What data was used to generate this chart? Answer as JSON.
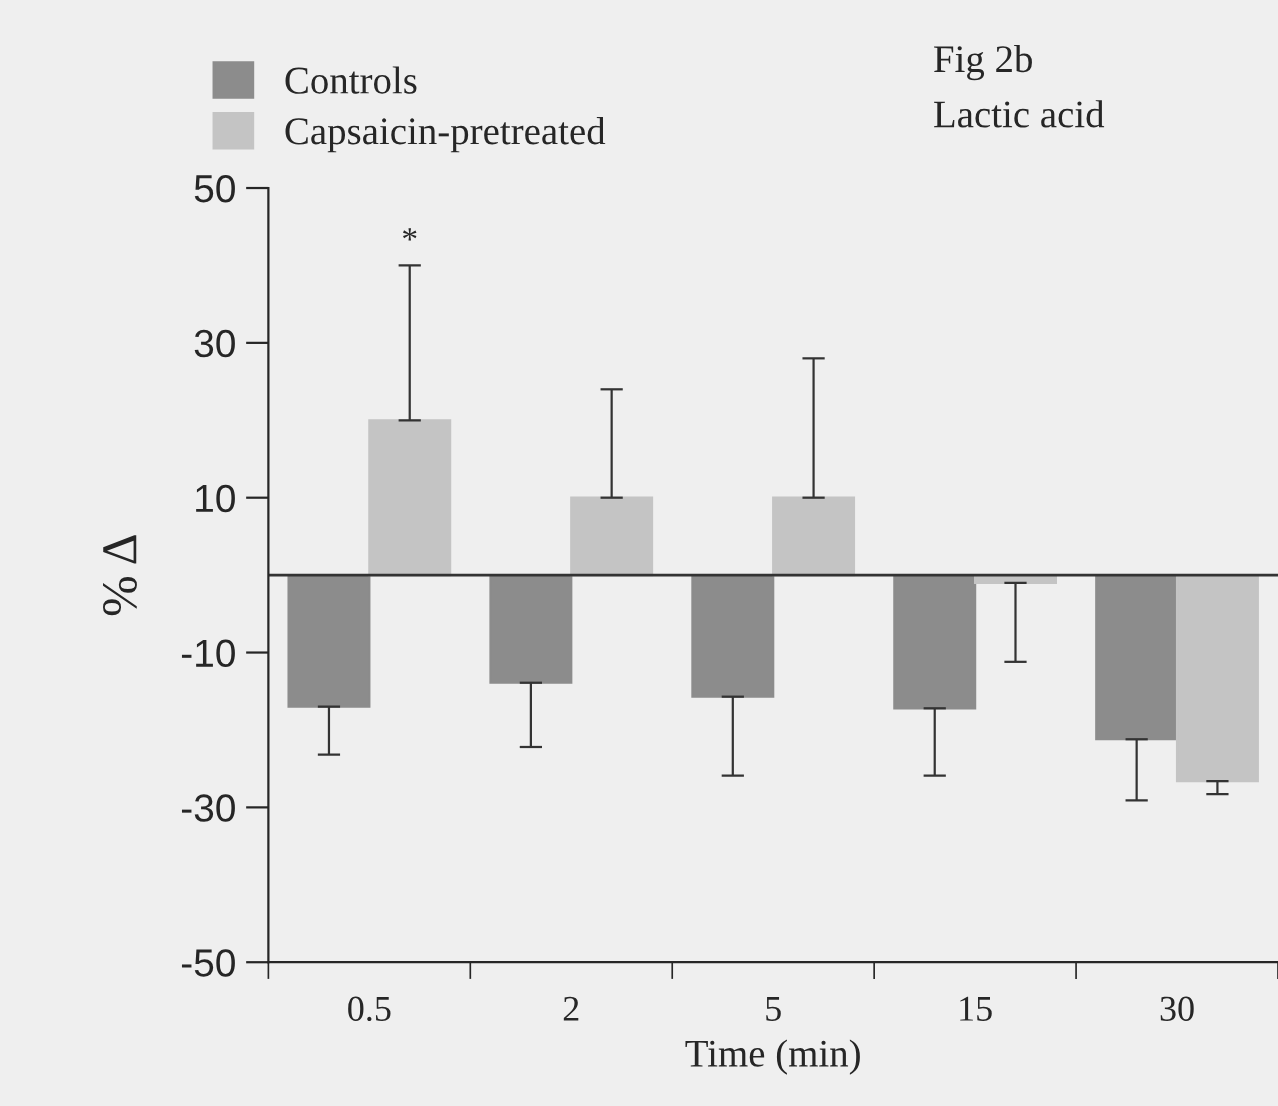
{
  "chart_data": {
    "type": "bar",
    "title": "Fig 2b",
    "subtitle": "Lactic acid",
    "xlabel": "Time (min)",
    "ylabel": "% Δ",
    "categories": [
      "0.5",
      "2",
      "5",
      "15",
      "30"
    ],
    "series": [
      {
        "name": "Controls",
        "color": "#8c8c8c",
        "values": [
          -17.0,
          -13.9,
          -15.7,
          -17.2,
          -21.2
        ],
        "errors": [
          [
            -23.2,
            -17.0
          ],
          [
            -22.2,
            -13.9
          ],
          [
            -25.9,
            -15.7
          ],
          [
            -25.9,
            -17.2
          ],
          [
            -29.1,
            -21.2
          ]
        ]
      },
      {
        "name": "Capsaicin-pretreated",
        "color": "#c4c4c4",
        "values": [
          20,
          10,
          10,
          -1,
          -26.6
        ],
        "errors": [
          [
            20,
            40
          ],
          [
            10,
            24
          ],
          [
            10,
            28
          ],
          [
            -11.2,
            -1
          ],
          [
            -28.3,
            -26.6
          ]
        ]
      }
    ],
    "ylim": [
      -50,
      50
    ],
    "yticks": [
      50,
      30,
      10,
      -10,
      -30,
      -50
    ],
    "ref_lines": [
      {
        "axis": "y",
        "value": 0,
        "color": "#333333"
      }
    ],
    "annotations": [
      "*"
    ],
    "legend": "top",
    "grid": false
  }
}
